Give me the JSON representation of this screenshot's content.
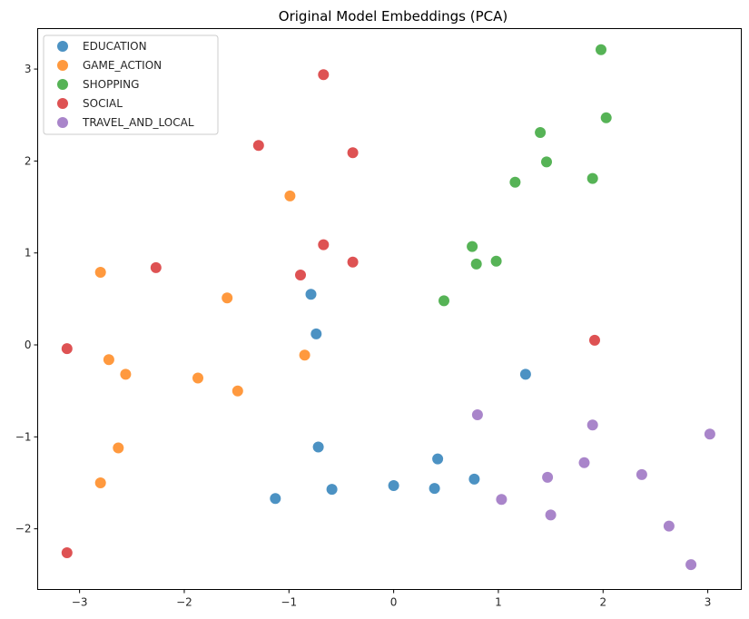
{
  "chart_data": {
    "type": "scatter",
    "title": "Original Model Embeddings (PCA)",
    "xlabel": "",
    "ylabel": "",
    "xlim": [
      -3.4,
      3.32
    ],
    "ylim": [
      -2.66,
      3.44
    ],
    "xticks": [
      -3,
      -2,
      -1,
      0,
      1,
      2,
      3
    ],
    "xtick_labels": [
      "−3",
      "−2",
      "−1",
      "0",
      "1",
      "2",
      "3"
    ],
    "yticks": [
      -2,
      -1,
      0,
      1,
      2,
      3
    ],
    "ytick_labels": [
      "−2",
      "−1",
      "0",
      "1",
      "2",
      "3"
    ],
    "grid": false,
    "legend_position": "top-left",
    "series": [
      {
        "name": "EDUCATION",
        "color": "#1f77b4",
        "points": [
          [
            -0.79,
            0.55
          ],
          [
            -0.74,
            0.12
          ],
          [
            1.26,
            -0.32
          ],
          [
            -0.72,
            -1.11
          ],
          [
            0.42,
            -1.24
          ],
          [
            0.77,
            -1.46
          ],
          [
            -1.13,
            -1.67
          ],
          [
            -0.59,
            -1.57
          ],
          [
            0.0,
            -1.53
          ],
          [
            0.39,
            -1.56
          ]
        ]
      },
      {
        "name": "GAME_ACTION",
        "color": "#ff7f0e",
        "points": [
          [
            -0.99,
            1.62
          ],
          [
            -2.8,
            0.79
          ],
          [
            -1.59,
            0.51
          ],
          [
            -0.85,
            -0.11
          ],
          [
            -2.72,
            -0.16
          ],
          [
            -2.56,
            -0.32
          ],
          [
            -1.87,
            -0.36
          ],
          [
            -1.49,
            -0.5
          ],
          [
            -2.63,
            -1.12
          ],
          [
            -2.8,
            -1.5
          ]
        ]
      },
      {
        "name": "SHOPPING",
        "color": "#2ca02c",
        "points": [
          [
            1.98,
            3.21
          ],
          [
            2.03,
            2.47
          ],
          [
            1.4,
            2.31
          ],
          [
            1.46,
            1.99
          ],
          [
            1.16,
            1.77
          ],
          [
            1.9,
            1.81
          ],
          [
            0.75,
            1.07
          ],
          [
            0.79,
            0.88
          ],
          [
            0.98,
            0.91
          ],
          [
            0.48,
            0.48
          ]
        ]
      },
      {
        "name": "SOCIAL",
        "color": "#d62728",
        "points": [
          [
            -0.67,
            2.94
          ],
          [
            -1.29,
            2.17
          ],
          [
            -0.39,
            2.09
          ],
          [
            -0.67,
            1.09
          ],
          [
            -2.27,
            0.84
          ],
          [
            -0.89,
            0.76
          ],
          [
            -0.39,
            0.9
          ],
          [
            -3.12,
            -0.04
          ],
          [
            1.92,
            0.05
          ],
          [
            -3.12,
            -2.26
          ]
        ]
      },
      {
        "name": "TRAVEL_AND_LOCAL",
        "color": "#9467bd",
        "points": [
          [
            0.8,
            -0.76
          ],
          [
            1.9,
            -0.87
          ],
          [
            3.02,
            -0.97
          ],
          [
            1.47,
            -1.44
          ],
          [
            1.82,
            -1.28
          ],
          [
            2.37,
            -1.41
          ],
          [
            1.03,
            -1.68
          ],
          [
            1.5,
            -1.85
          ],
          [
            2.63,
            -1.97
          ],
          [
            2.84,
            -2.39
          ]
        ]
      }
    ]
  }
}
